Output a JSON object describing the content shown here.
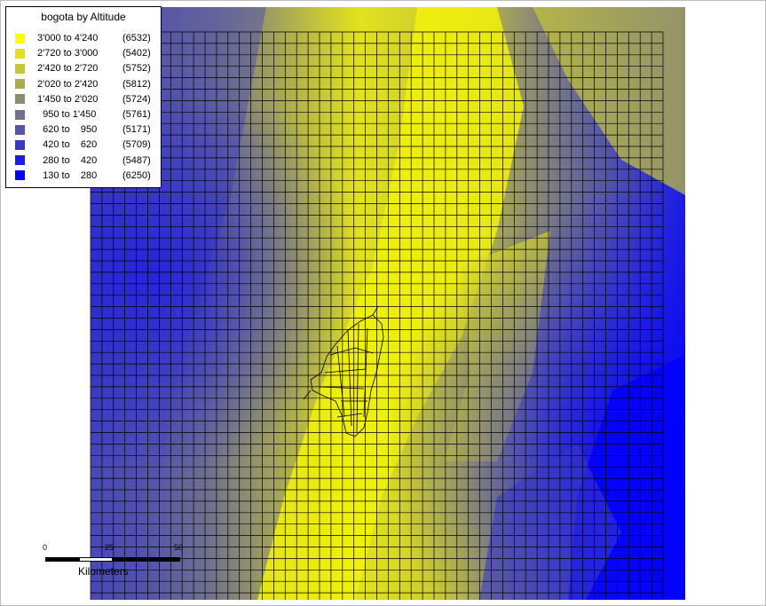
{
  "legend": {
    "title": "bogota by Altitude",
    "items": [
      {
        "range": "3'000 to 4'240",
        "count": "(6532)",
        "color": "#ffff00"
      },
      {
        "range": "2'720 to 3'000",
        "count": "(5402)",
        "color": "#e2e21c"
      },
      {
        "range": "2'420 to 2'720",
        "count": "(5752)",
        "color": "#c6c638"
      },
      {
        "range": "2'020 to 2'420",
        "count": "(5812)",
        "color": "#aaaa55"
      },
      {
        "range": "1'450 to 2'020",
        "count": "(5724)",
        "color": "#8d8d71"
      },
      {
        "range": "  950 to 1'450",
        "count": "(5761)",
        "color": "#71718d"
      },
      {
        "range": "  620 to    950",
        "count": "(5171)",
        "color": "#5555aa"
      },
      {
        "range": "  420 to    620",
        "count": "(5709)",
        "color": "#3838c6"
      },
      {
        "range": "  280 to    420",
        "count": "(5487)",
        "color": "#1c1ce2"
      },
      {
        "range": "  130 to    280",
        "count": "(6250)",
        "color": "#0000ff"
      }
    ]
  },
  "scale": {
    "ticks": [
      "0",
      "25",
      "50"
    ],
    "unit": "Kilometers"
  },
  "grid": {
    "color": "#000000"
  }
}
